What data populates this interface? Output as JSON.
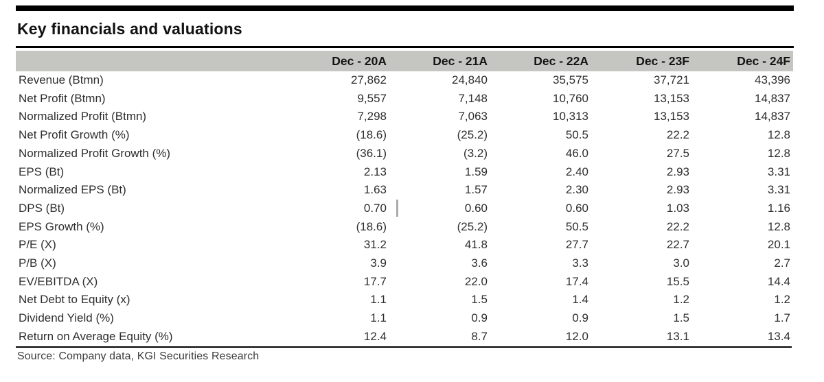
{
  "title": "Key financials and valuations",
  "table": {
    "columns": [
      "",
      "Dec - 20A",
      "Dec - 21A",
      "Dec - 22A",
      "Dec - 23F",
      "Dec - 24F"
    ],
    "rows": [
      {
        "label": "Revenue (Btmn)",
        "values": [
          "27,862",
          "24,840",
          "35,575",
          "37,721",
          "43,396"
        ]
      },
      {
        "label": "Net Profit (Btmn)",
        "values": [
          "9,557",
          "7,148",
          "10,760",
          "13,153",
          "14,837"
        ]
      },
      {
        "label": "Normalized Profit (Btmn)",
        "values": [
          "7,298",
          "7,063",
          "10,313",
          "13,153",
          "14,837"
        ]
      },
      {
        "label": "Net Profit Growth (%)",
        "values": [
          "(18.6)",
          "(25.2)",
          "50.5",
          "22.2",
          "12.8"
        ]
      },
      {
        "label": "Normalized Profit Growth (%)",
        "values": [
          "(36.1)",
          "(3.2)",
          "46.0",
          "27.5",
          "12.8"
        ]
      },
      {
        "label": "EPS (Bt)",
        "values": [
          "2.13",
          "1.59",
          "2.40",
          "2.93",
          "3.31"
        ]
      },
      {
        "label": "Normalized EPS (Bt)",
        "values": [
          "1.63",
          "1.57",
          "2.30",
          "2.93",
          "3.31"
        ]
      },
      {
        "label": "DPS (Bt)",
        "values": [
          "0.70",
          "0.60",
          "0.60",
          "1.03",
          "1.16"
        ]
      },
      {
        "label": "EPS Growth (%)",
        "values": [
          "(18.6)",
          "(25.2)",
          "50.5",
          "22.2",
          "12.8"
        ]
      },
      {
        "label": "P/E (X)",
        "values": [
          "31.2",
          "41.8",
          "27.7",
          "22.7",
          "20.1"
        ]
      },
      {
        "label": "P/B (X)",
        "values": [
          "3.9",
          "3.6",
          "3.3",
          "3.0",
          "2.7"
        ]
      },
      {
        "label": "EV/EBITDA (X)",
        "values": [
          "17.7",
          "22.0",
          "17.4",
          "15.5",
          "14.4"
        ]
      },
      {
        "label": "Net Debt to Equity (x)",
        "values": [
          "1.1",
          "1.5",
          "1.4",
          "1.2",
          "1.2"
        ]
      },
      {
        "label": "Dividend Yield (%)",
        "values": [
          "1.1",
          "0.9",
          "0.9",
          "1.5",
          "1.7"
        ]
      },
      {
        "label": "Return on Average Equity (%)",
        "values": [
          "12.4",
          "8.7",
          "12.0",
          "13.1",
          "13.4"
        ]
      }
    ]
  },
  "source": "Source: Company data, KGI Securities Research",
  "colors": {
    "top_bar": "#000000",
    "title_rule": "#000000",
    "header_bg": "#c5c5c2",
    "bottom_rule": "#000000",
    "title_text": "#111111",
    "body_text": "#2e2e2e"
  }
}
